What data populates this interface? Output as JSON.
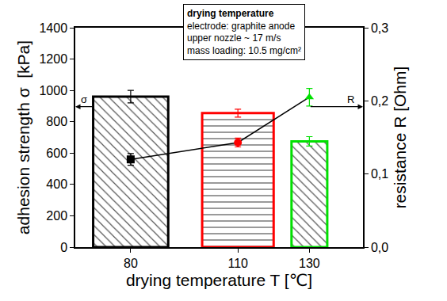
{
  "chart_data": {
    "type": "bar",
    "x_label": "drying temperature T [℃]",
    "y_label": "adhesion strength σ  [kPa]",
    "y2_label": "resistance R [Ohm]",
    "x": [
      80,
      110,
      130
    ],
    "xlim": [
      64.5,
      145
    ],
    "xticks": [
      80,
      110,
      130
    ],
    "ylim": [
      0,
      1400
    ],
    "yticks": [
      0,
      200,
      400,
      600,
      800,
      1000,
      1200,
      1400
    ],
    "y2lim": [
      0,
      0.3
    ],
    "y2ticks": [
      {
        "value": 0,
        "label": "0,0"
      },
      {
        "value": 0.1,
        "label": "0,1"
      },
      {
        "value": 0.2,
        "label": "0,2"
      },
      {
        "value": 0.3,
        "label": "0,3"
      }
    ],
    "series": [
      {
        "name": "σ",
        "type": "bar",
        "values": [
          960,
          855,
          675
        ],
        "errors": [
          40,
          25,
          30
        ],
        "colors": [
          "#000000",
          "#ff0000",
          "#00e000"
        ]
      },
      {
        "name": "R",
        "type": "line",
        "axis": "y2",
        "values": [
          0.12,
          0.143,
          0.205
        ],
        "errors": [
          0.008,
          0.006,
          0.012
        ],
        "color": "#000000",
        "colors": [
          "#000000",
          "#ff0000",
          "#00e000"
        ],
        "marker": "mixed",
        "line_style": "solid"
      }
    ],
    "annotations": {
      "box_title": "drying temperature",
      "box_lines": [
        "electrode: graphite anode",
        "upper nozzle ~ 17 m/s",
        "mass loading: 10.5 mg/cm²"
      ],
      "left_arrow": "σ",
      "right_arrow": "R"
    },
    "grid": false
  }
}
